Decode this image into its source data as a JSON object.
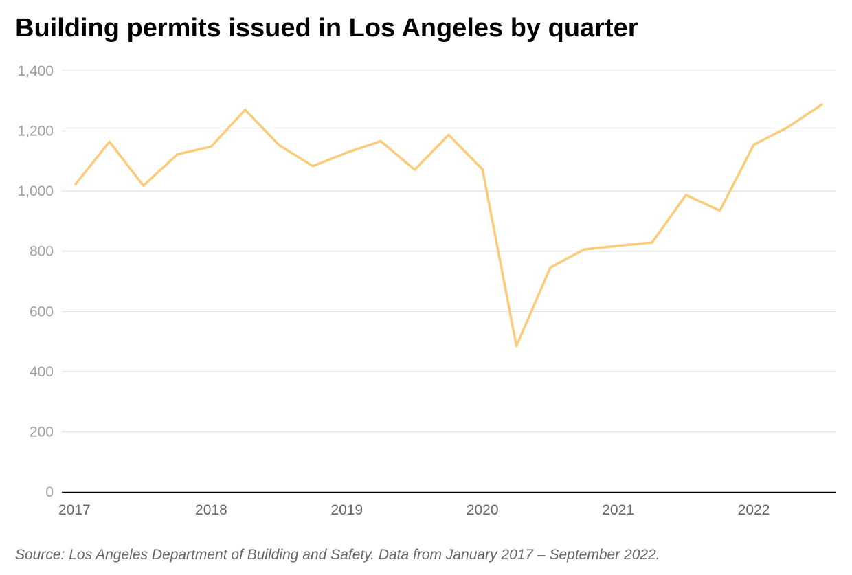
{
  "chart_data": {
    "type": "line",
    "title": "Building permits issued in Los Angeles by quarter",
    "source": "Source: Los Angeles Department of Building and Safety. Data from January 2017 – September 2022.",
    "xlabel": "",
    "ylabel": "",
    "x": [
      "2017-Q1",
      "2017-Q2",
      "2017-Q3",
      "2017-Q4",
      "2018-Q1",
      "2018-Q2",
      "2018-Q3",
      "2018-Q4",
      "2019-Q1",
      "2019-Q2",
      "2019-Q3",
      "2019-Q4",
      "2020-Q1",
      "2020-Q2",
      "2020-Q3",
      "2020-Q4",
      "2021-Q1",
      "2021-Q2",
      "2021-Q3",
      "2021-Q4",
      "2022-Q1",
      "2022-Q2",
      "2022-Q3"
    ],
    "series": [
      {
        "values": [
          1023,
          1164,
          1018,
          1122,
          1148,
          1270,
          1153,
          1083,
          1128,
          1166,
          1071,
          1187,
          1072,
          485,
          746,
          806,
          818,
          829,
          987,
          935,
          1154,
          1212,
          1287
        ]
      }
    ],
    "ylim": [
      0,
      1400
    ],
    "yticks": [
      0,
      200,
      400,
      600,
      800,
      1000,
      1200,
      1400
    ],
    "ytick_labels": [
      "0",
      "200",
      "400",
      "600",
      "800",
      "1,000",
      "1,200",
      "1,400"
    ],
    "xtick_labels": [
      "2017",
      "2018",
      "2019",
      "2020",
      "2021",
      "2022"
    ],
    "grid": true,
    "colors": {
      "line": "#fccb7a",
      "grid": "#e0e0e0",
      "axis": "#000000",
      "tick_text": "#a0a0a0",
      "xtick_text": "#666666"
    }
  }
}
